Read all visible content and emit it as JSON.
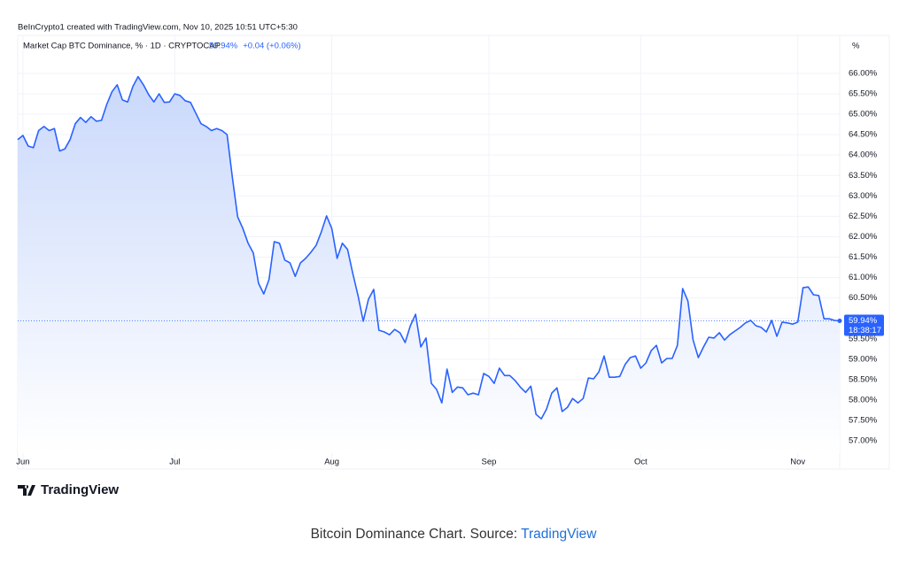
{
  "header": "BeInCrypto1 created with TradingView.com, Nov 10, 2025 10:51 UTC+5:30",
  "chart_data": {
    "type": "line",
    "title": "Market Cap BTC Dominance, % · 1D · CRYPTOCAP",
    "last_value": {
      "value": 59.94,
      "label": "59.94%"
    },
    "change": "+0.04 (+0.06%)",
    "countdown": "18:38:17",
    "axis_unit": "%",
    "color": "#2962ff",
    "grid": true,
    "ylim": [
      56.7,
      66.93
    ],
    "yticks": [
      {
        "value": 57,
        "label": "57.00%"
      },
      {
        "value": 57.5,
        "label": "57.50%"
      },
      {
        "value": 58,
        "label": "58.00%"
      },
      {
        "value": 58.5,
        "label": "58.50%"
      },
      {
        "value": 59,
        "label": "59.00%"
      },
      {
        "value": 59.5,
        "label": "59.50%"
      },
      {
        "value": 60,
        "label": "60.00%"
      },
      {
        "value": 60.5,
        "label": "60.50%"
      },
      {
        "value": 61,
        "label": "61.00%"
      },
      {
        "value": 61.5,
        "label": "61.50%"
      },
      {
        "value": 62,
        "label": "62.00%"
      },
      {
        "value": 62.5,
        "label": "62.50%"
      },
      {
        "value": 63,
        "label": "63.00%"
      },
      {
        "value": 63.5,
        "label": "63.50%"
      },
      {
        "value": 64,
        "label": "64.00%"
      },
      {
        "value": 64.5,
        "label": "64.50%"
      },
      {
        "value": 65,
        "label": "65.00%"
      },
      {
        "value": 65.5,
        "label": "65.50%"
      },
      {
        "value": 66,
        "label": "66.00%"
      }
    ],
    "categories": [
      null,
      "Jun",
      null,
      null,
      null,
      null,
      null,
      null,
      null,
      null,
      null,
      null,
      null,
      null,
      null,
      null,
      null,
      null,
      null,
      null,
      null,
      null,
      null,
      null,
      null,
      null,
      null,
      null,
      null,
      null,
      "Jul",
      null,
      null,
      null,
      null,
      null,
      null,
      null,
      null,
      null,
      null,
      null,
      null,
      null,
      null,
      null,
      null,
      null,
      null,
      null,
      null,
      null,
      null,
      null,
      null,
      null,
      null,
      null,
      null,
      null,
      "Aug",
      null,
      null,
      null,
      null,
      null,
      null,
      null,
      null,
      null,
      null,
      null,
      null,
      null,
      null,
      null,
      null,
      null,
      null,
      null,
      null,
      null,
      null,
      null,
      null,
      null,
      null,
      null,
      null,
      null,
      "Sep",
      null,
      null,
      null,
      null,
      null,
      null,
      null,
      null,
      null,
      null,
      null,
      null,
      null,
      null,
      null,
      null,
      null,
      null,
      null,
      null,
      null,
      null,
      null,
      null,
      null,
      null,
      null,
      null,
      "Oct",
      null,
      null,
      null,
      null,
      null,
      null,
      null,
      null,
      null,
      null,
      null,
      null,
      null,
      null,
      null,
      null,
      null,
      null,
      null,
      null,
      null,
      null,
      null,
      null,
      null,
      null,
      null,
      null,
      null,
      "Nov",
      null,
      null,
      null,
      null,
      null,
      null,
      null,
      null
    ],
    "values": [
      64.38,
      64.48,
      64.22,
      64.18,
      64.6,
      64.7,
      64.6,
      64.65,
      64.1,
      64.15,
      64.38,
      64.77,
      64.92,
      64.8,
      64.94,
      64.83,
      64.85,
      65.24,
      65.55,
      65.72,
      65.35,
      65.3,
      65.68,
      65.92,
      65.72,
      65.48,
      65.3,
      65.5,
      65.29,
      65.3,
      65.5,
      65.46,
      65.33,
      65.29,
      65.03,
      64.77,
      64.7,
      64.6,
      64.65,
      64.6,
      64.5,
      63.46,
      62.49,
      62.2,
      61.84,
      61.6,
      60.86,
      60.6,
      60.95,
      61.88,
      61.84,
      61.43,
      61.36,
      61.03,
      61.36,
      61.47,
      61.62,
      61.79,
      62.12,
      62.51,
      62.2,
      61.47,
      61.84,
      61.69,
      61.1,
      60.56,
      59.93,
      60.47,
      60.71,
      59.71,
      59.67,
      59.6,
      59.73,
      59.65,
      59.41,
      59.82,
      60.1,
      59.3,
      59.52,
      58.41,
      58.26,
      57.93,
      58.76,
      58.19,
      58.32,
      58.3,
      58.13,
      58.17,
      58.13,
      58.65,
      58.58,
      58.41,
      58.78,
      58.6,
      58.6,
      58.48,
      58.32,
      58.19,
      58.34,
      57.65,
      57.54,
      57.78,
      58.17,
      58.3,
      57.72,
      57.82,
      58.04,
      57.93,
      58.04,
      58.54,
      58.52,
      58.69,
      59.08,
      58.56,
      58.56,
      58.58,
      58.87,
      59.04,
      59.08,
      58.78,
      58.91,
      59.21,
      59.34,
      58.91,
      59.02,
      59.02,
      59.34,
      60.73,
      60.43,
      59.47,
      59.04,
      59.3,
      59.54,
      59.52,
      59.65,
      59.47,
      59.6,
      59.69,
      59.78,
      59.89,
      59.95,
      59.82,
      59.78,
      59.67,
      59.95,
      59.56,
      59.91,
      59.89,
      59.86,
      59.91,
      60.75,
      60.77,
      60.58,
      60.56,
      59.99,
      59.99,
      59.95,
      59.94
    ]
  },
  "logo": "TradingView",
  "caption": {
    "text": "Bitcoin Dominance Chart. Source: ",
    "link": "TradingView"
  }
}
